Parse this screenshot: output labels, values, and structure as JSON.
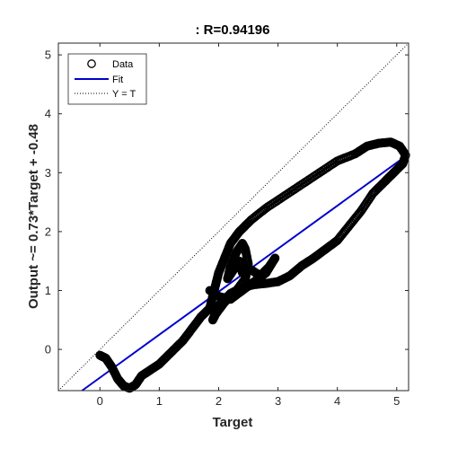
{
  "chart_data": {
    "type": "scatter",
    "title": ": R=0.94196",
    "xlabel": "Target",
    "ylabel": "Output ~= 0.73*Target + -0.48",
    "xlim": [
      -0.7,
      5.2
    ],
    "ylim": [
      -0.7,
      5.2
    ],
    "xticks": [
      "0",
      "1",
      "2",
      "3",
      "4",
      "5"
    ],
    "yticks": [
      "0",
      "1",
      "2",
      "3",
      "4",
      "5"
    ],
    "grid": false,
    "legend_position": "top-left",
    "legend": [
      {
        "label": "Data",
        "style": "circle"
      },
      {
        "label": "Fit",
        "style": "solid-line"
      },
      {
        "label": "Y = T",
        "style": "dotted-line"
      }
    ],
    "fit_line": {
      "slope": 0.73,
      "intercept": -0.48,
      "color": "#0000cc"
    },
    "identity_line": {
      "color": "#000000"
    },
    "data_color": "#000000",
    "data_path": [
      [
        0.0,
        -0.1
      ],
      [
        0.1,
        -0.15
      ],
      [
        0.2,
        -0.3
      ],
      [
        0.3,
        -0.5
      ],
      [
        0.4,
        -0.62
      ],
      [
        0.5,
        -0.66
      ],
      [
        0.6,
        -0.6
      ],
      [
        0.7,
        -0.45
      ],
      [
        0.85,
        -0.35
      ],
      [
        1.0,
        -0.25
      ],
      [
        1.2,
        -0.05
      ],
      [
        1.4,
        0.15
      ],
      [
        1.55,
        0.35
      ],
      [
        1.7,
        0.55
      ],
      [
        1.85,
        0.7
      ],
      [
        1.9,
        0.9
      ],
      [
        1.95,
        1.1
      ],
      [
        2.0,
        1.3
      ],
      [
        2.1,
        1.55
      ],
      [
        2.2,
        1.8
      ],
      [
        2.35,
        2.0
      ],
      [
        2.55,
        2.2
      ],
      [
        2.8,
        2.4
      ],
      [
        3.1,
        2.6
      ],
      [
        3.4,
        2.8
      ],
      [
        3.7,
        3.0
      ],
      [
        4.0,
        3.2
      ],
      [
        4.3,
        3.32
      ],
      [
        4.5,
        3.45
      ],
      [
        4.7,
        3.5
      ],
      [
        4.9,
        3.52
      ],
      [
        5.05,
        3.45
      ],
      [
        5.15,
        3.3
      ],
      [
        5.1,
        3.15
      ],
      [
        4.95,
        3.0
      ],
      [
        4.8,
        2.85
      ],
      [
        4.6,
        2.65
      ],
      [
        4.4,
        2.35
      ],
      [
        4.2,
        2.1
      ],
      [
        4.0,
        1.85
      ],
      [
        3.8,
        1.7
      ],
      [
        3.6,
        1.55
      ],
      [
        3.4,
        1.42
      ],
      [
        3.2,
        1.25
      ],
      [
        3.0,
        1.15
      ],
      [
        2.8,
        1.12
      ],
      [
        2.6,
        1.1
      ],
      [
        2.4,
        1.05
      ],
      [
        2.2,
        0.95
      ],
      [
        2.0,
        0.75
      ],
      [
        1.9,
        0.5
      ],
      [
        1.95,
        0.6
      ],
      [
        2.1,
        0.8
      ],
      [
        2.3,
        1.0
      ],
      [
        2.45,
        1.2
      ],
      [
        2.5,
        1.45
      ],
      [
        2.45,
        1.7
      ],
      [
        2.4,
        1.8
      ],
      [
        2.3,
        1.65
      ],
      [
        2.2,
        1.4
      ],
      [
        2.15,
        1.2
      ],
      [
        2.25,
        1.35
      ],
      [
        2.35,
        1.5
      ],
      [
        2.4,
        1.3
      ],
      [
        2.55,
        1.35
      ],
      [
        2.7,
        1.25
      ],
      [
        2.85,
        1.4
      ],
      [
        2.95,
        1.55
      ],
      [
        2.8,
        1.3
      ],
      [
        2.6,
        1.15
      ],
      [
        2.4,
        1.0
      ],
      [
        2.2,
        0.85
      ],
      [
        2.0,
        0.9
      ],
      [
        1.85,
        1.0
      ]
    ]
  }
}
